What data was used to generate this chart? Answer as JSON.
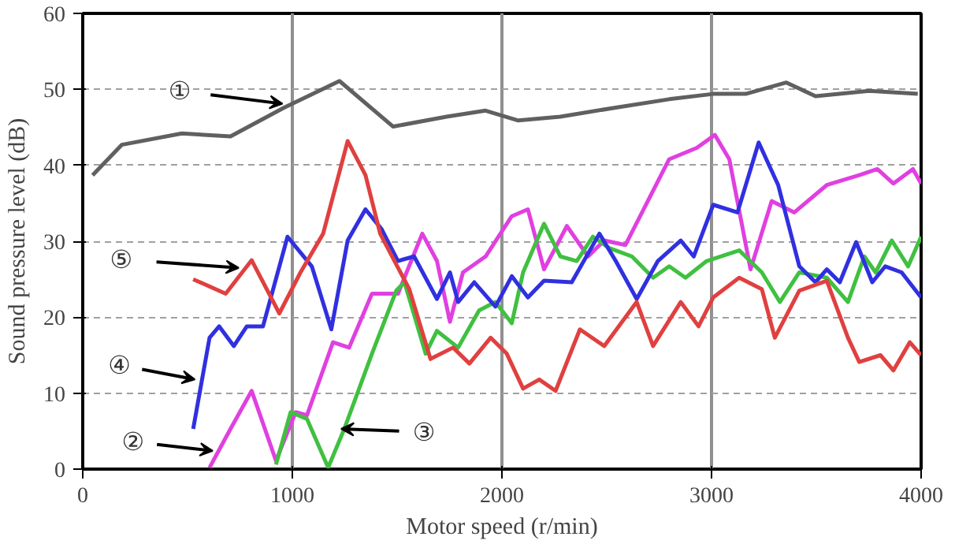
{
  "chart_data": {
    "type": "line",
    "xlabel": "Motor speed (r/min)",
    "ylabel": "Sound pressure level (dB)",
    "xlim": [
      0,
      4000
    ],
    "xticks": [
      0,
      1000,
      2000,
      3000,
      4000
    ],
    "ylim": [
      0,
      60
    ],
    "yticks": [
      0,
      10,
      20,
      30,
      40,
      50,
      60
    ],
    "grid": true,
    "marker": "none",
    "line_style": "solid",
    "series": [
      {
        "color": "#606060",
        "x": [
          47,
          186,
          473,
          705,
          961,
          1225,
          1481,
          1736,
          1922,
          2078,
          2279,
          2543,
          2798,
          3008,
          3163,
          3357,
          3496,
          3752,
          3984
        ],
        "values": [
          38.7,
          42.7,
          44.2,
          43.8,
          47.6,
          51.1,
          45.1,
          46.4,
          47.2,
          45.9,
          46.4,
          47.6,
          48.7,
          49.4,
          49.4,
          50.9,
          49.1,
          49.8,
          49.4
        ]
      },
      {
        "color": "#e040e0",
        "x": [
          605,
          705,
          806,
          922,
          1016,
          1070,
          1194,
          1271,
          1380,
          1504,
          1620,
          1690,
          1752,
          1814,
          1922,
          2047,
          2124,
          2201,
          2310,
          2411,
          2488,
          2589,
          2798,
          2930,
          3016,
          3085,
          3186,
          3287,
          3395,
          3550,
          3705,
          3791,
          3868,
          3961,
          4000
        ],
        "values": [
          0.2,
          5.3,
          10.3,
          1.1,
          7.5,
          7.1,
          16.7,
          16,
          23.1,
          23.1,
          31,
          27.4,
          19.4,
          25.9,
          28,
          33.3,
          34.2,
          26.3,
          32,
          28,
          30.1,
          29.5,
          40.8,
          42.3,
          44,
          40.8,
          26.3,
          35.3,
          33.8,
          37.4,
          38.7,
          39.5,
          37.6,
          39.5,
          37.6
        ]
      },
      {
        "color": "#40c040",
        "x": [
          922,
          992,
          1070,
          1171,
          1248,
          1380,
          1496,
          1535,
          1636,
          1690,
          1791,
          1891,
          1969,
          2047,
          2101,
          2201,
          2279,
          2357,
          2434,
          2512,
          2620,
          2721,
          2798,
          2876,
          2977,
          3132,
          3240,
          3326,
          3419,
          3550,
          3651,
          3729,
          3783,
          3860,
          3938,
          4000
        ],
        "values": [
          0.6,
          7.5,
          6.6,
          0.2,
          5.3,
          15.2,
          23.5,
          24.6,
          15.2,
          18.2,
          16,
          20.9,
          22,
          19.2,
          25.9,
          32.3,
          28,
          27.4,
          30.6,
          29.1,
          28,
          25.2,
          26.7,
          25.2,
          27.4,
          28.8,
          25.9,
          22,
          25.9,
          25.2,
          22,
          28,
          25.9,
          30.1,
          26.7,
          30.6
        ]
      },
      {
        "color": "#3030e0",
        "x": [
          527,
          605,
          651,
          721,
          783,
          860,
          977,
          1093,
          1186,
          1264,
          1349,
          1426,
          1504,
          1581,
          1690,
          1752,
          1791,
          1868,
          1969,
          2047,
          2124,
          2201,
          2333,
          2465,
          2543,
          2643,
          2744,
          2853,
          2915,
          3008,
          3124,
          3225,
          3318,
          3419,
          3496,
          3550,
          3612,
          3690,
          3767,
          3829,
          3907,
          4000
        ],
        "values": [
          5.3,
          17.3,
          18.8,
          16.2,
          18.8,
          18.8,
          30.6,
          26.7,
          18.4,
          30.1,
          34.2,
          31.6,
          27.4,
          28,
          22.4,
          25.9,
          22,
          24.6,
          21.4,
          25.4,
          22.6,
          24.8,
          24.6,
          31,
          27.4,
          22.4,
          27.4,
          30.1,
          28,
          34.8,
          33.8,
          43,
          37.4,
          26.7,
          24.6,
          26.3,
          24.6,
          29.9,
          24.6,
          26.7,
          25.9,
          22.6
        ]
      },
      {
        "color": "#e04040",
        "x": [
          527,
          682,
          806,
          938,
          1039,
          1147,
          1264,
          1349,
          1419,
          1558,
          1659,
          1767,
          1845,
          1946,
          2023,
          2101,
          2178,
          2256,
          2372,
          2488,
          2643,
          2721,
          2853,
          2938,
          3008,
          3132,
          3240,
          3302,
          3419,
          3550,
          3651,
          3705,
          3806,
          3868,
          3946,
          4000
        ],
        "values": [
          25,
          23.1,
          27.5,
          20.5,
          25.9,
          31,
          43.2,
          38.7,
          31,
          23.7,
          14.5,
          16,
          13.9,
          17.3,
          15.2,
          10.6,
          11.8,
          10.3,
          18.4,
          16.2,
          22,
          16.2,
          22,
          18.8,
          22.6,
          25.2,
          23.7,
          17.3,
          23.5,
          24.8,
          17.3,
          14.1,
          15,
          13,
          16.7,
          15
        ]
      }
    ],
    "annotations": [
      {
        "text": "①",
        "x": 953,
        "y": 48.1
      },
      {
        "text": "②",
        "x": 620,
        "y": 2.4
      },
      {
        "text": "③",
        "x": 1233,
        "y": 5.3
      },
      {
        "text": "④",
        "x": 535,
        "y": 11.8
      },
      {
        "text": "⑤",
        "x": 744,
        "y": 26.5
      }
    ]
  }
}
